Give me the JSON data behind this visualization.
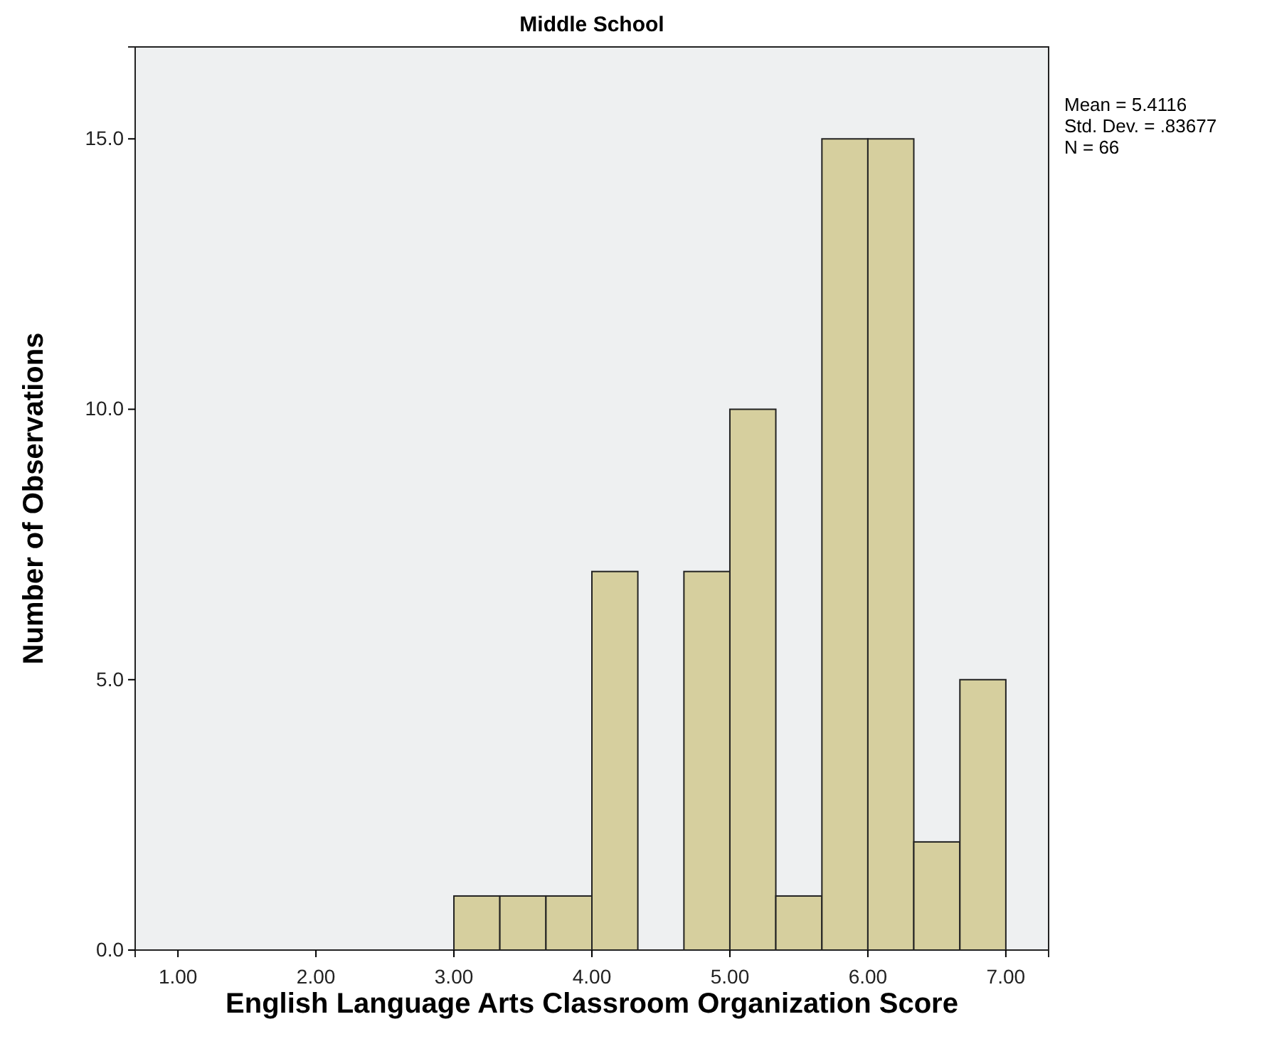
{
  "chart_data": {
    "type": "histogram",
    "title": "Middle School",
    "xlabel": "English Language Arts Classroom Organization Score",
    "ylabel": "Number of Observations",
    "bins": [
      3,
      3.333,
      3.667,
      4,
      4.333,
      4.667,
      5,
      5.333,
      5.667,
      6,
      6.333,
      6.667,
      7
    ],
    "values": [
      1,
      1,
      1,
      7,
      0,
      7,
      10,
      1,
      15,
      15,
      2,
      5
    ],
    "color": "#d6cf9e",
    "xlim": [
      0.69,
      7.31
    ],
    "xticks": [
      {
        "value": 1,
        "label": "1.00"
      },
      {
        "value": 2,
        "label": "2.00"
      },
      {
        "value": 3,
        "label": "3.00"
      },
      {
        "value": 4,
        "label": "4.00"
      },
      {
        "value": 5,
        "label": "5.00"
      },
      {
        "value": 6,
        "label": "6.00"
      },
      {
        "value": 7,
        "label": "7.00"
      }
    ],
    "ylim": [
      0,
      16.7
    ],
    "yticks": [
      {
        "value": 0,
        "label": "0.0"
      },
      {
        "value": 5,
        "label": "5.0"
      },
      {
        "value": 10,
        "label": "10.0"
      },
      {
        "value": 15,
        "label": "15.0"
      }
    ],
    "grid": false,
    "annotations": [
      "Mean = 5.4116",
      "Std. Dev. = .83677",
      "N = 66"
    ]
  }
}
